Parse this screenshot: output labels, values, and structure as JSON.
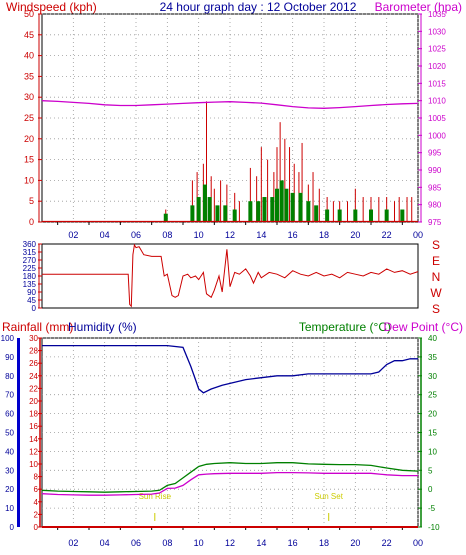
{
  "header": {
    "left": "Windspeed (kph)",
    "center": "24 hour graph day : 12 October 2012",
    "right": "Barometer (hpa)"
  },
  "colors": {
    "wind_axis": "#cc0000",
    "baro_axis": "#cc00cc",
    "title": "#000099",
    "gust": "#cc0000",
    "avg_wind": "#008000",
    "direction": "#cc0000",
    "rain": "#cc0000",
    "humidity": "#000099",
    "temperature": "#008000",
    "dew_point": "#cc00cc",
    "sun": "#cccc00",
    "grid": "#999999"
  },
  "chart_data": [
    {
      "id": "wind-baro",
      "type": "line",
      "x_ticks": [
        "02",
        "04",
        "06",
        "08",
        "10",
        "12",
        "14",
        "16",
        "18",
        "20",
        "22",
        "00"
      ],
      "left_axis": {
        "label": "Windspeed (kph)",
        "ylim": [
          0,
          50
        ],
        "ticks": [
          0,
          5,
          10,
          15,
          20,
          25,
          30,
          35,
          40,
          45,
          50
        ]
      },
      "right_axis": {
        "label": "Barometer (hpa)",
        "ylim": [
          975,
          1035
        ],
        "ticks": [
          975,
          980,
          985,
          990,
          995,
          1000,
          1005,
          1010,
          1015,
          1020,
          1025,
          1030,
          1035
        ]
      },
      "series": [
        {
          "role": "barometer",
          "axis": "right",
          "x": [
            0,
            1,
            2,
            3,
            4,
            5,
            6,
            7,
            8,
            9,
            10,
            11,
            12,
            13,
            14,
            15,
            16,
            17,
            18,
            19,
            20,
            21,
            22,
            23,
            24
          ],
          "y": [
            1010,
            1009.8,
            1009.5,
            1009.2,
            1008.8,
            1008.6,
            1008.6,
            1008.8,
            1009.0,
            1009.2,
            1009.4,
            1009.6,
            1009.7,
            1009.5,
            1009.3,
            1008.8,
            1008.3,
            1007.9,
            1007.8,
            1008.0,
            1008.3,
            1008.6,
            1008.9,
            1009.1,
            1009.2
          ]
        }
      ],
      "gust_spikes": [
        [
          7.9,
          3
        ],
        [
          9.6,
          10
        ],
        [
          9.9,
          12
        ],
        [
          10.3,
          14
        ],
        [
          10.5,
          29
        ],
        [
          10.8,
          11
        ],
        [
          11.0,
          8
        ],
        [
          11.4,
          10
        ],
        [
          11.8,
          9
        ],
        [
          12.3,
          7
        ],
        [
          12.6,
          5
        ],
        [
          13.3,
          13
        ],
        [
          13.7,
          11
        ],
        [
          14.0,
          18
        ],
        [
          14.4,
          15
        ],
        [
          14.8,
          12
        ],
        [
          15.0,
          18
        ],
        [
          15.2,
          24
        ],
        [
          15.5,
          20
        ],
        [
          15.8,
          18
        ],
        [
          16.1,
          14
        ],
        [
          16.4,
          12
        ],
        [
          16.6,
          19
        ],
        [
          17.0,
          9
        ],
        [
          17.3,
          12
        ],
        [
          17.7,
          8
        ],
        [
          18.2,
          6
        ],
        [
          18.6,
          5
        ],
        [
          19.0,
          5
        ],
        [
          19.5,
          5
        ],
        [
          20.0,
          8
        ],
        [
          20.5,
          6
        ],
        [
          21.0,
          6
        ],
        [
          21.5,
          6
        ],
        [
          22.0,
          6
        ],
        [
          22.5,
          5
        ],
        [
          22.8,
          6
        ],
        [
          23.3,
          6
        ],
        [
          23.6,
          6
        ]
      ],
      "avg_spikes": [
        [
          7.9,
          2
        ],
        [
          9.6,
          4
        ],
        [
          10.0,
          6
        ],
        [
          10.4,
          9
        ],
        [
          10.7,
          6
        ],
        [
          11.2,
          4
        ],
        [
          11.7,
          4
        ],
        [
          12.3,
          3
        ],
        [
          13.3,
          5
        ],
        [
          13.8,
          5
        ],
        [
          14.2,
          6
        ],
        [
          14.7,
          6
        ],
        [
          15.0,
          8
        ],
        [
          15.3,
          10
        ],
        [
          15.6,
          8
        ],
        [
          16.0,
          7
        ],
        [
          16.5,
          7
        ],
        [
          17.0,
          5
        ],
        [
          17.5,
          4
        ],
        [
          18.2,
          3
        ],
        [
          19.0,
          3
        ],
        [
          20.0,
          3
        ],
        [
          21.0,
          3
        ],
        [
          22.0,
          3
        ],
        [
          23.0,
          3
        ]
      ]
    },
    {
      "id": "direction",
      "type": "line",
      "left_axis": {
        "ylim": [
          0,
          360
        ],
        "ticks": [
          0,
          45,
          90,
          135,
          180,
          225,
          270,
          315,
          360
        ]
      },
      "right_labels": [
        "S",
        "E",
        "N",
        "W",
        "S"
      ],
      "series": [
        {
          "role": "wind-direction",
          "x": [
            0,
            5.5,
            5.6,
            5.7,
            5.8,
            5.9,
            6.0,
            6.2,
            6.5,
            7.0,
            7.6,
            7.8,
            8.0,
            8.3,
            8.5,
            8.7,
            9.0,
            9.3,
            9.5,
            9.8,
            10.0,
            10.3,
            10.5,
            10.8,
            11.0,
            11.3,
            11.5,
            11.8,
            12.0,
            12.3,
            12.6,
            13.0,
            13.3,
            13.5,
            13.8,
            14.0,
            14.5,
            15.0,
            15.5,
            16.0,
            16.5,
            17.0,
            17.5,
            18.0,
            18.5,
            19.0,
            19.5,
            20.0,
            20.5,
            21.0,
            21.5,
            22.0,
            22.5,
            23.0,
            23.5,
            24.0
          ],
          "y": [
            190,
            190,
            20,
            10,
            300,
            355,
            340,
            345,
            300,
            290,
            290,
            180,
            190,
            70,
            60,
            70,
            180,
            190,
            170,
            180,
            160,
            200,
            80,
            60,
            100,
            180,
            90,
            330,
            120,
            200,
            190,
            220,
            180,
            140,
            200,
            170,
            200,
            190,
            170,
            210,
            190,
            180,
            200,
            180,
            190,
            170,
            200,
            190,
            180,
            200,
            190,
            220,
            200,
            210,
            190,
            205
          ]
        }
      ]
    },
    {
      "id": "temp-humidity",
      "type": "line",
      "header_labels": {
        "rain": "Rainfall (mm)",
        "humidity": "Humidity (%)",
        "temperature": "Temperature (°C)",
        "dew_point": "Dew Point (°C)"
      },
      "x_ticks": [
        "02",
        "04",
        "06",
        "08",
        "10",
        "12",
        "14",
        "16",
        "18",
        "20",
        "22",
        "00"
      ],
      "humidity_axis": {
        "ylim": [
          0,
          100
        ],
        "ticks": [
          0,
          10,
          20,
          30,
          40,
          50,
          60,
          70,
          80,
          90,
          100
        ]
      },
      "rain_axis": {
        "ylim": [
          0,
          30
        ],
        "ticks": [
          0,
          2,
          4,
          6,
          8,
          10,
          12,
          14,
          16,
          18,
          20,
          22,
          24,
          26,
          28,
          30
        ]
      },
      "temp_axis": {
        "ylim": [
          -10,
          40
        ],
        "ticks": [
          -10,
          -5,
          0,
          5,
          10,
          15,
          20,
          25,
          30,
          35,
          40
        ]
      },
      "annotations": [
        {
          "text": "Sun Rise",
          "x": 7.2
        },
        {
          "text": "Sun Set",
          "x": 18.3
        }
      ],
      "series": [
        {
          "role": "humidity",
          "axis": "humidity",
          "x": [
            0,
            1,
            2,
            3,
            4,
            5,
            6,
            7,
            8,
            9,
            9.5,
            9.8,
            10.0,
            10.3,
            10.8,
            11.5,
            12.0,
            13.0,
            14.0,
            15.0,
            16.0,
            17.0,
            18.0,
            19.0,
            20.0,
            21.0,
            21.5,
            22.0,
            22.5,
            23.0,
            23.5,
            24.0
          ],
          "y": [
            96,
            96,
            96,
            96,
            96,
            96,
            96,
            96,
            96,
            95,
            85,
            78,
            73,
            71,
            73,
            75,
            76,
            78,
            79,
            80,
            80,
            81,
            81,
            81,
            81,
            81,
            82,
            86,
            88,
            88,
            89,
            89
          ]
        },
        {
          "role": "temperature",
          "axis": "temp",
          "x": [
            0,
            1,
            2,
            3,
            4,
            5,
            6,
            7,
            7.5,
            8,
            8.5,
            9,
            9.5,
            10,
            10.5,
            11,
            12,
            13,
            14,
            15,
            16,
            17,
            18,
            19,
            20,
            21,
            22,
            23,
            24
          ],
          "y": [
            -0.3,
            -0.5,
            -0.6,
            -0.7,
            -0.8,
            -0.7,
            -0.6,
            -0.5,
            -0.3,
            1.0,
            1.5,
            3.0,
            4.5,
            6.0,
            6.6,
            6.8,
            7.0,
            6.8,
            6.8,
            7.0,
            7.0,
            6.7,
            6.6,
            6.5,
            6.5,
            6.3,
            5.6,
            5.0,
            4.8
          ]
        },
        {
          "role": "dew-point",
          "axis": "temp",
          "x": [
            0,
            1,
            2,
            3,
            4,
            5,
            6,
            7,
            7.5,
            8,
            8.5,
            9,
            9.5,
            10,
            10.5,
            11,
            12,
            13,
            14,
            15,
            16,
            17,
            18,
            19,
            20,
            21,
            22,
            23,
            24
          ],
          "y": [
            -1.2,
            -1.4,
            -1.5,
            -1.6,
            -1.6,
            -1.5,
            -1.4,
            -1.3,
            -1.0,
            0.2,
            0.3,
            1.0,
            2.5,
            3.8,
            4.0,
            4.1,
            4.2,
            4.2,
            4.2,
            4.4,
            4.4,
            4.3,
            4.2,
            4.2,
            4.2,
            4.2,
            3.8,
            3.6,
            3.6
          ]
        },
        {
          "role": "rainfall",
          "axis": "rain",
          "x": [
            0,
            24
          ],
          "y": [
            0,
            0
          ]
        }
      ]
    }
  ]
}
